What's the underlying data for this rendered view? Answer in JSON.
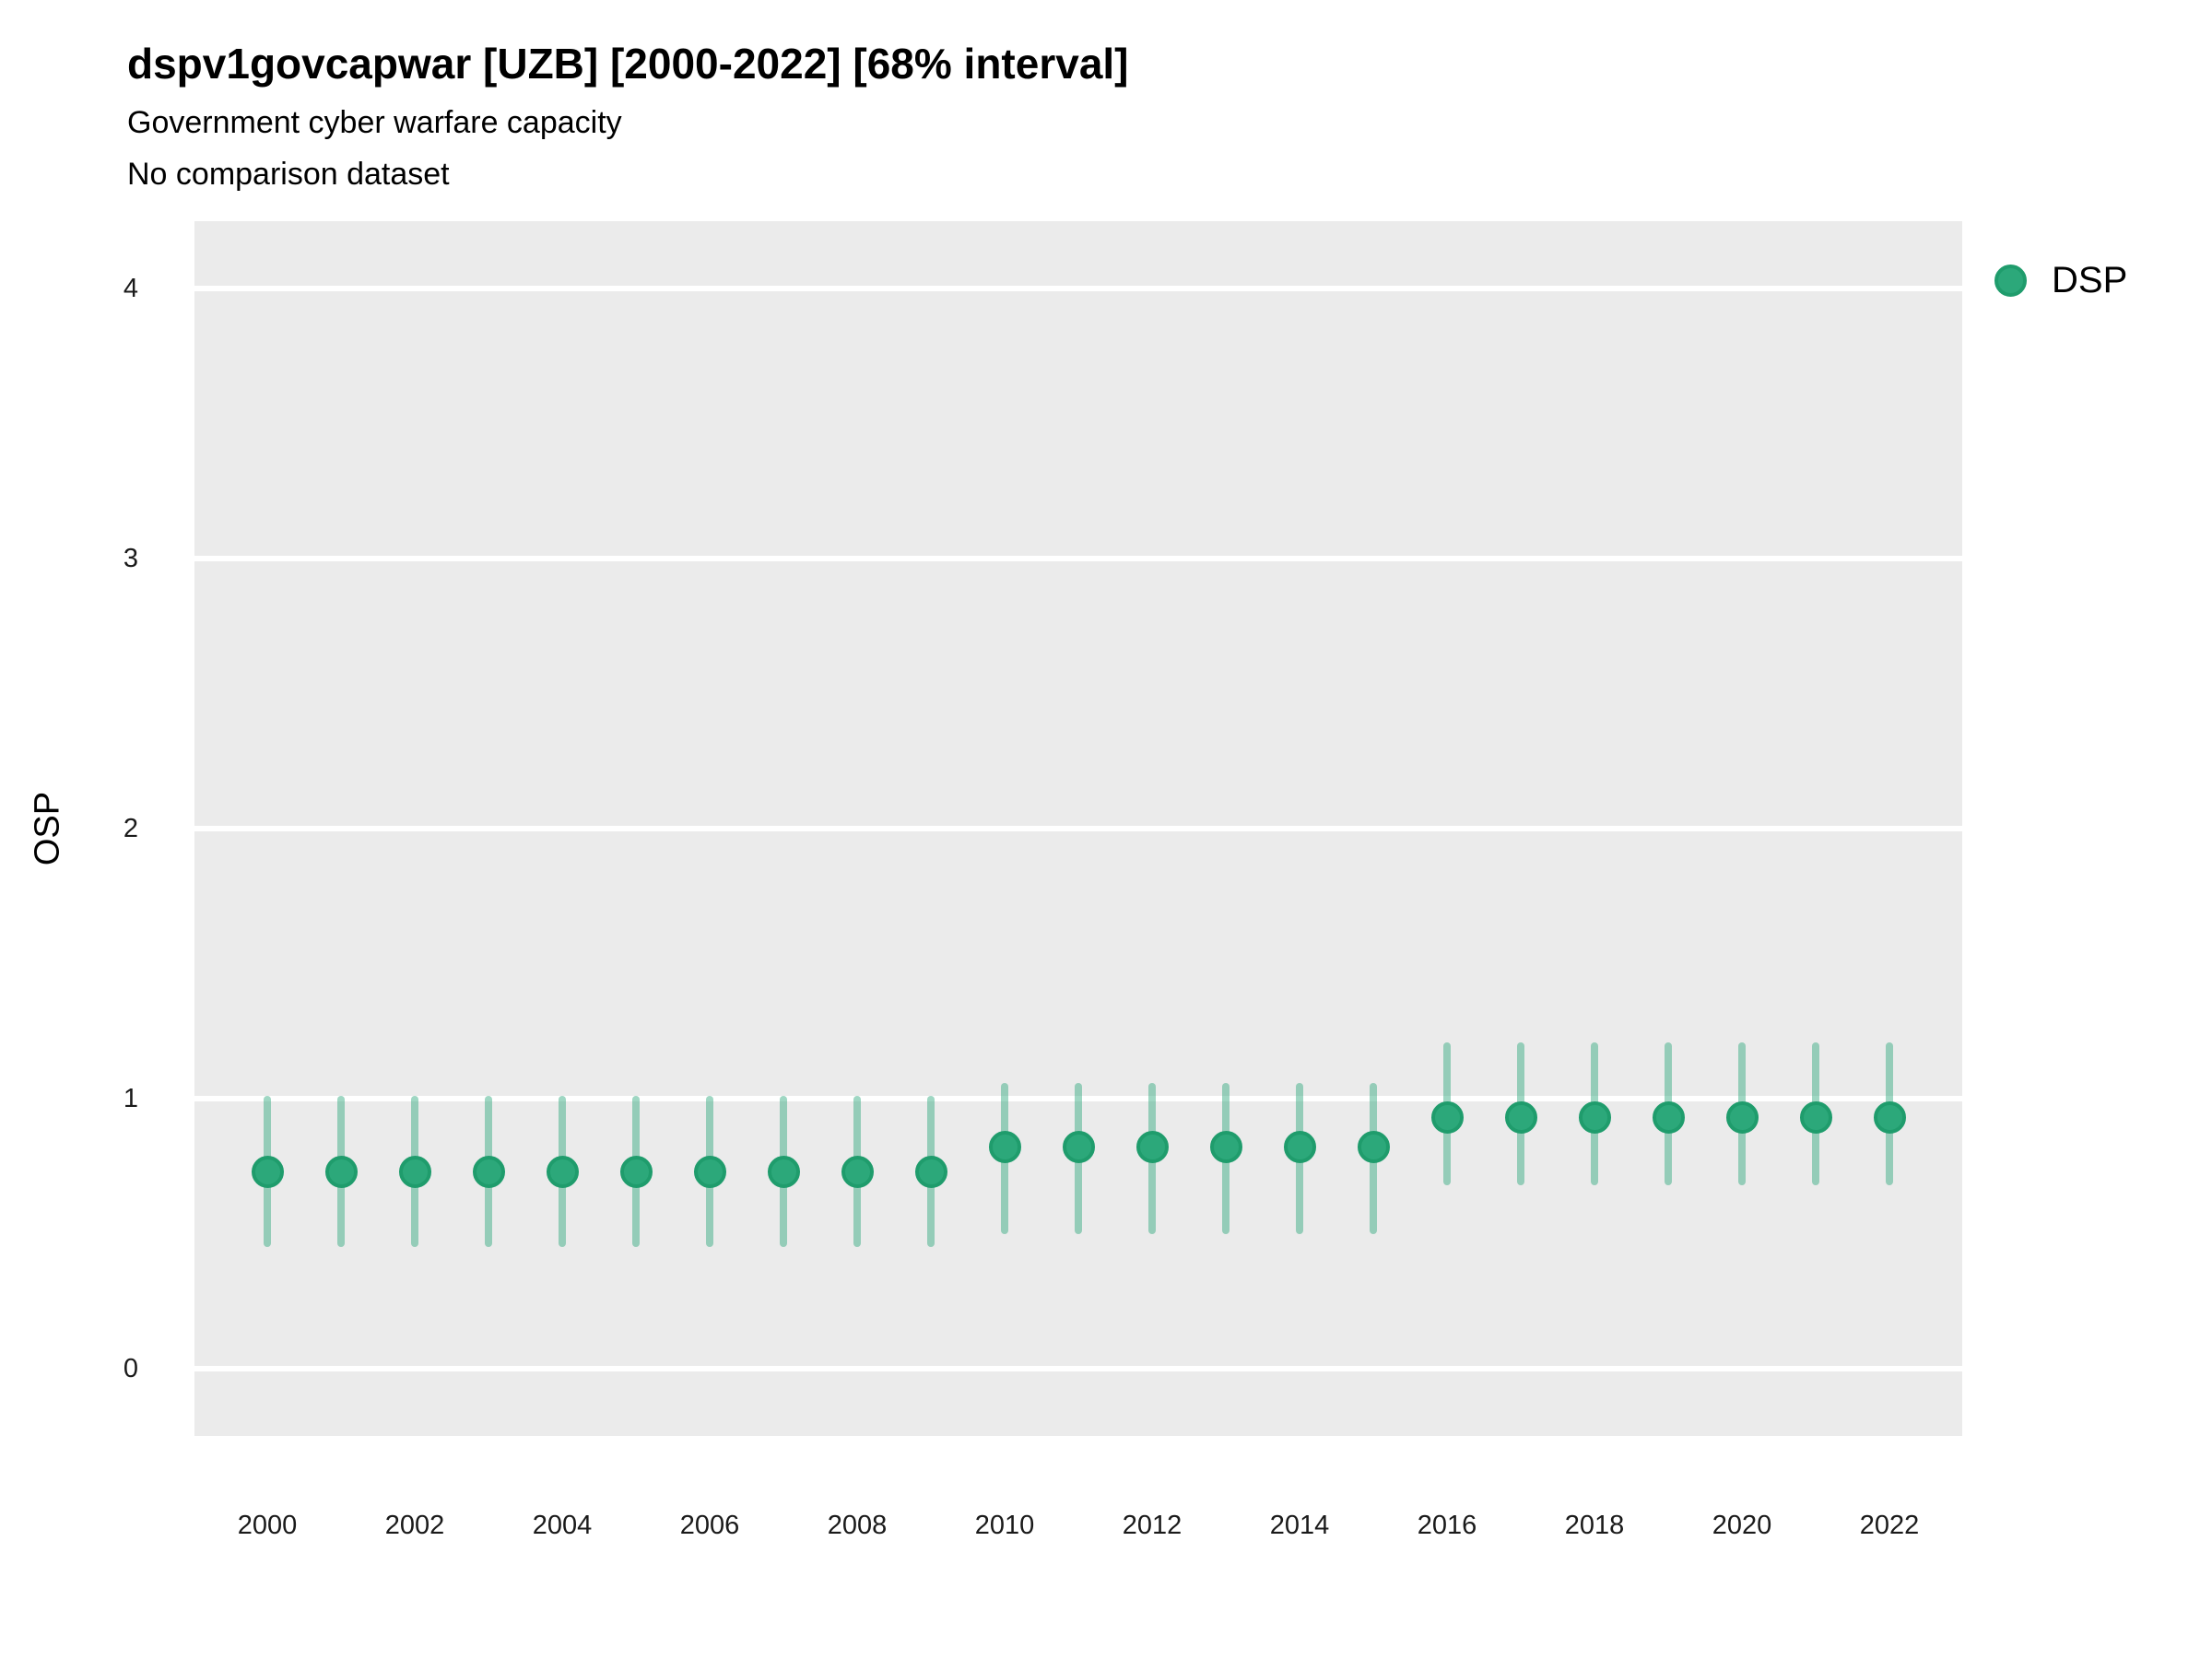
{
  "title": "dspv1govcapwar [UZB] [2000-2022] [68% interval]",
  "subtitle": "Government cyber warfare capacity",
  "note": "No comparison dataset",
  "legend": {
    "label": "DSP"
  },
  "colors": {
    "point_fill": "#2ca87a",
    "point_stroke": "#1f9c6c",
    "interval": "#2aa679",
    "panel_bg": "#ebebeb",
    "gridline": "#ffffff",
    "text": "#000000"
  },
  "chart_data": {
    "type": "scatter",
    "title": "dspv1govcapwar [UZB] [2000-2022] [68% interval]",
    "subtitle": "Government cyber warfare capacity",
    "note": "No comparison dataset",
    "interval_level": "68%",
    "xlabel": "",
    "ylabel": "OSP",
    "ylim": [
      -0.25,
      4.25
    ],
    "y_ticks": [
      0,
      1,
      2,
      3,
      4
    ],
    "x_ticks": [
      2000,
      2002,
      2004,
      2006,
      2008,
      2010,
      2012,
      2014,
      2016,
      2018,
      2020,
      2022
    ],
    "grid": "horizontal-major-only",
    "legend_position": "top-right",
    "x": [
      2000,
      2001,
      2002,
      2003,
      2004,
      2005,
      2006,
      2007,
      2008,
      2009,
      2010,
      2011,
      2012,
      2013,
      2014,
      2015,
      2016,
      2017,
      2018,
      2019,
      2020,
      2021,
      2022
    ],
    "series": [
      {
        "name": "DSP",
        "estimates": [
          0.73,
          0.73,
          0.73,
          0.73,
          0.73,
          0.73,
          0.73,
          0.73,
          0.73,
          0.73,
          0.82,
          0.82,
          0.82,
          0.82,
          0.82,
          0.82,
          0.93,
          0.93,
          0.93,
          0.93,
          0.93,
          0.93,
          0.93
        ],
        "lower": [
          0.45,
          0.45,
          0.45,
          0.45,
          0.45,
          0.45,
          0.45,
          0.45,
          0.45,
          0.45,
          0.5,
          0.5,
          0.5,
          0.5,
          0.5,
          0.5,
          0.68,
          0.68,
          0.68,
          0.68,
          0.68,
          0.68,
          0.68
        ],
        "upper": [
          1.01,
          1.01,
          1.01,
          1.01,
          1.01,
          1.01,
          1.01,
          1.01,
          1.01,
          1.01,
          1.06,
          1.06,
          1.06,
          1.06,
          1.06,
          1.06,
          1.21,
          1.21,
          1.21,
          1.21,
          1.21,
          1.21,
          1.21
        ]
      }
    ]
  }
}
